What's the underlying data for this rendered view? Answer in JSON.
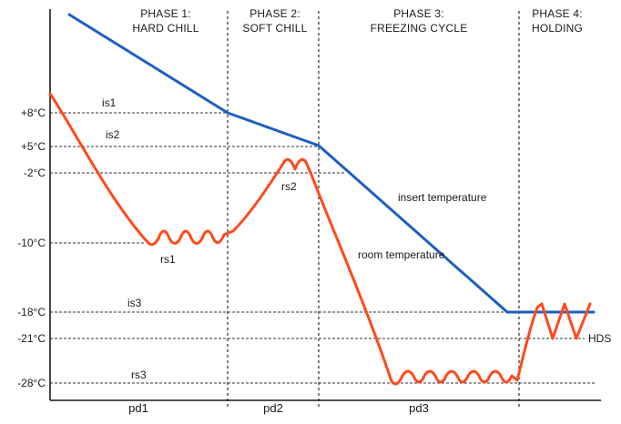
{
  "colors": {
    "insert_curve": "#1f5fbf",
    "room_curve": "#ff4a1c",
    "axis": "#1a1a1a",
    "reference_line": "#333333",
    "divider": "#2a2a2a"
  },
  "phases": [
    {
      "line1": "PHASE 1:",
      "line2": "HARD CHILL"
    },
    {
      "line1": "PHASE 2:",
      "line2": "SOFT CHILL"
    },
    {
      "line1": "PHASE 3:",
      "line2": "FREEZING CYCLE"
    },
    {
      "line1": "PHASE 4:",
      "line2": "HOLDING"
    }
  ],
  "y_labels": [
    "+8°C",
    "+5°C",
    "-2°C",
    "-10°C",
    "-18°C",
    "-21°C",
    "-28°C"
  ],
  "setpoints": {
    "is1": "is1",
    "is2": "is2",
    "is3": "is3",
    "rs1": "rs1",
    "rs2": "rs2",
    "rs3": "rs3",
    "hds": "HDS"
  },
  "curve_labels": {
    "insert": "insert temperature",
    "room": "room temperature"
  },
  "durations": [
    "pd1",
    "pd2",
    "pd3"
  ]
}
